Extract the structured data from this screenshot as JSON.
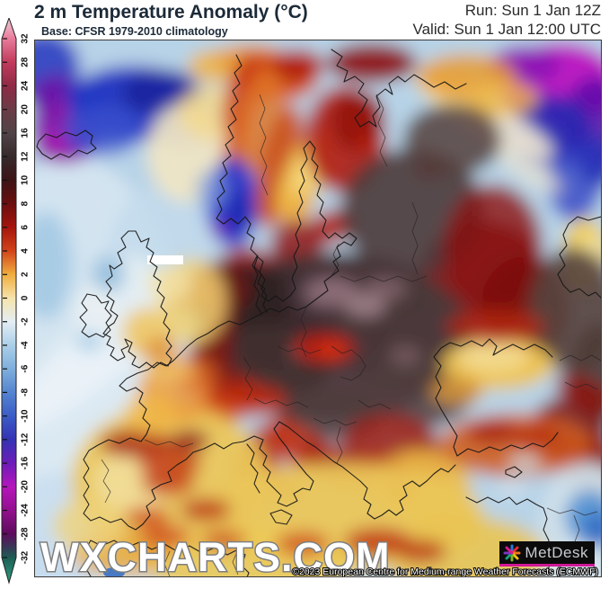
{
  "header": {
    "title": "2 m Temperature Anomaly (°C)",
    "subtitle": "Base: CFSR 1979-2010 climatology",
    "run": "Run: Sun 1 Jan 12Z",
    "valid": "Valid: Sun 1 Jan 12:00 UTC"
  },
  "colorbar": {
    "unit": "°C",
    "ticks": [
      "32",
      "28",
      "24",
      "20",
      "16",
      "12",
      "10",
      "8",
      "6",
      "4",
      "2",
      "0",
      "-2",
      "-4",
      "-6",
      "-8",
      "-10",
      "-12",
      "-16",
      "-20",
      "-24",
      "-28",
      "-32"
    ],
    "tip_top_color": "#f2cdd9",
    "tip_bottom_color": "#2ca183",
    "colors": [
      "#e87b9b",
      "#c13a5c",
      "#8f2a46",
      "#6b3c47",
      "#514347",
      "#352a2c",
      "#3c1416",
      "#6b0f0f",
      "#a5150c",
      "#d2431a",
      "#f0ae3e",
      "#f6e3ab",
      "#e4eef4",
      "#abcfe8",
      "#7fafdc",
      "#5584d0",
      "#3b5cc6",
      "#3333b4",
      "#6d1cb8",
      "#b516bc",
      "#93108e",
      "#5c0b5c",
      "#1e5c54"
    ]
  },
  "map": {
    "watermark": "WXCHARTS.COM",
    "attribution": "©2023 European Centre for Medium-range Weather Forecasts (ECMWF)",
    "logo_text": "MetDesk"
  }
}
